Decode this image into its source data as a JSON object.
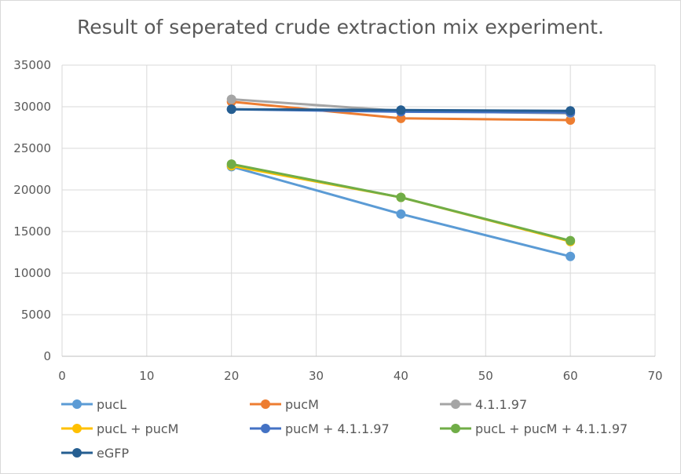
{
  "chart_data": {
    "type": "scatter",
    "title": "Result of seperated crude extraction mix experiment.",
    "xlabel": "",
    "ylabel": "",
    "xlim": [
      0,
      70
    ],
    "ylim": [
      0,
      35000
    ],
    "x_ticks": [
      0,
      10,
      20,
      30,
      40,
      50,
      60,
      70
    ],
    "y_ticks": [
      0,
      5000,
      10000,
      15000,
      20000,
      25000,
      30000,
      35000
    ],
    "grid": true,
    "legend_position": "bottom",
    "series": [
      {
        "name": "pucL",
        "color": "#5b9bd5",
        "x": [
          20,
          40,
          60
        ],
        "y": [
          22800,
          17100,
          12000
        ]
      },
      {
        "name": "pucM",
        "color": "#ed7d31",
        "x": [
          20,
          40,
          60
        ],
        "y": [
          30600,
          28600,
          28400
        ]
      },
      {
        "name": "4.1.1.97",
        "color": "#a5a5a5",
        "x": [
          20,
          40,
          60
        ],
        "y": [
          30900,
          29500,
          29200
        ]
      },
      {
        "name": "pucL + pucM",
        "color": "#ffc000",
        "x": [
          20,
          40,
          60
        ],
        "y": [
          22900,
          19100,
          13800
        ]
      },
      {
        "name": "pucM + 4.1.1.97",
        "color": "#4472c4",
        "x": [
          20,
          40,
          60
        ],
        "y": [
          29700,
          29400,
          29300
        ]
      },
      {
        "name": "pucL + pucM + 4.1.1.97",
        "color": "#70ad47",
        "x": [
          20,
          40,
          60
        ],
        "y": [
          23100,
          19100,
          13900
        ]
      },
      {
        "name": "eGFP",
        "color": "#255e91",
        "x": [
          20,
          40,
          60
        ],
        "y": [
          29700,
          29600,
          29500
        ]
      }
    ]
  }
}
